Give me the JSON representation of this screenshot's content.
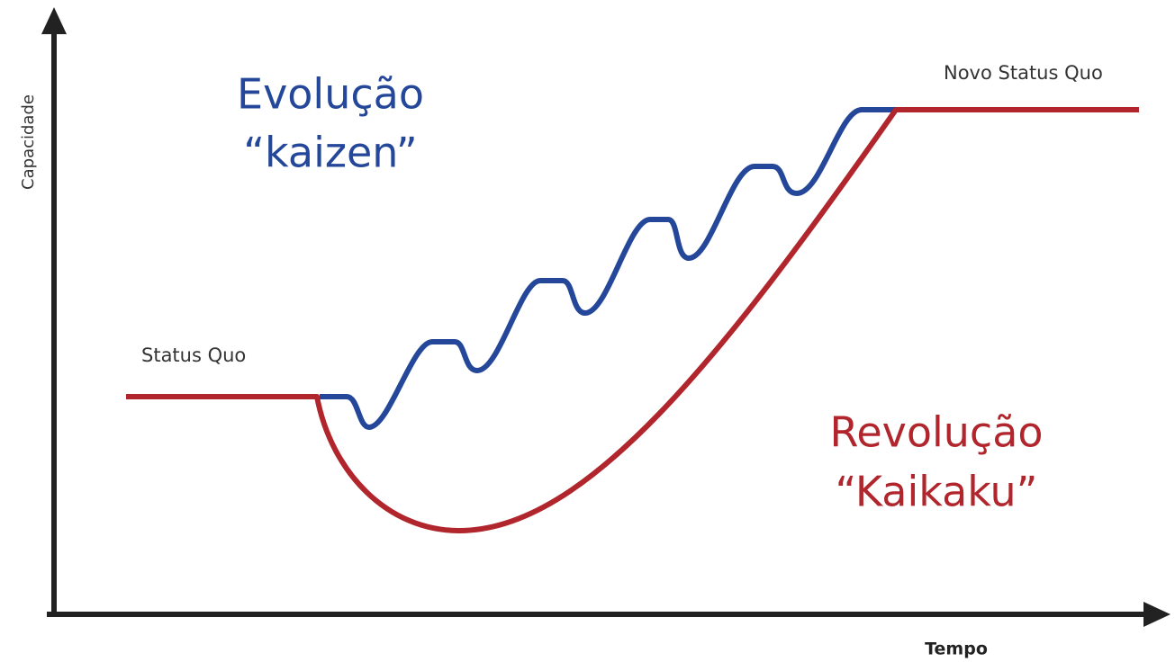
{
  "axes": {
    "y_label": "Capacidade",
    "x_label": "Tempo"
  },
  "labels": {
    "status_quo": "Status Quo",
    "novo_status_quo": "Novo Status Quo"
  },
  "evolution": {
    "line1": "Evolução",
    "line2": "“kaizen”"
  },
  "revolution": {
    "line1": "Revolução",
    "line2": "“Kaikaku”"
  }
}
